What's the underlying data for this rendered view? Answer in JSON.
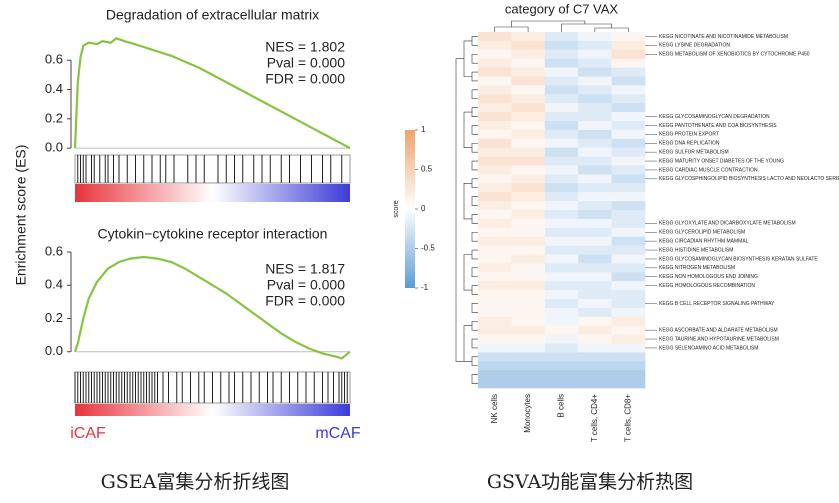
{
  "chart_data": [
    {
      "type": "gsea",
      "title": "Degradation of extracellular matrix",
      "ylabel": "Enrichment score (ES)",
      "annotations": [
        "NES = 1.802",
        "Pval = 0.000",
        "FDR = 0.000"
      ],
      "color": "#86c440",
      "x": [
        0,
        1,
        2,
        3,
        5,
        8,
        10,
        13,
        15,
        18,
        20,
        25,
        30,
        35,
        40,
        45,
        50,
        55,
        60,
        65,
        70,
        75,
        80,
        85,
        90,
        95,
        98,
        100
      ],
      "values": [
        0,
        0.45,
        0.62,
        0.7,
        0.72,
        0.71,
        0.73,
        0.72,
        0.75,
        0.73,
        0.72,
        0.69,
        0.66,
        0.63,
        0.59,
        0.55,
        0.5,
        0.45,
        0.4,
        0.35,
        0.3,
        0.25,
        0.2,
        0.15,
        0.1,
        0.05,
        0.02,
        0
      ],
      "hits": [
        1,
        2,
        3,
        4,
        6,
        7,
        9,
        11,
        12,
        14,
        16,
        19,
        22,
        25,
        28,
        31,
        33,
        36,
        41,
        44,
        47,
        52,
        55,
        58,
        61,
        65,
        68,
        71,
        75,
        78,
        82,
        86,
        90,
        93,
        97
      ],
      "xlim": [
        0,
        100
      ],
      "ylim": [
        -0.04,
        0.82
      ],
      "yticks": [
        {
          "value": 0,
          "label": "0.0"
        },
        0.2,
        0.4,
        0.6
      ]
    },
    {
      "type": "gsea",
      "title": "Cytokin−cytokine receptor interaction",
      "annotations": [
        "NES = 1.817",
        "Pval = 0.000",
        "FDR = 0.000"
      ],
      "color": "#86c440",
      "x": [
        0,
        1,
        3,
        5,
        8,
        12,
        16,
        20,
        25,
        30,
        35,
        40,
        45,
        50,
        55,
        60,
        65,
        70,
        75,
        80,
        85,
        90,
        95,
        97,
        100
      ],
      "values": [
        0,
        0.05,
        0.2,
        0.32,
        0.42,
        0.5,
        0.54,
        0.56,
        0.57,
        0.56,
        0.54,
        0.5,
        0.45,
        0.4,
        0.35,
        0.29,
        0.23,
        0.17,
        0.11,
        0.06,
        0.02,
        -0.01,
        -0.03,
        -0.04,
        0
      ],
      "hits": [
        0,
        1,
        2,
        3,
        4,
        5,
        6,
        7,
        8,
        9,
        10,
        11,
        12,
        13,
        14,
        15,
        16,
        17,
        18,
        19,
        20,
        21,
        22,
        23,
        24,
        25,
        26,
        27,
        28,
        29,
        30,
        32,
        34,
        37,
        39,
        42,
        45,
        47,
        50,
        53,
        56,
        58,
        61,
        64,
        67,
        70,
        72,
        75,
        78,
        81,
        84,
        87,
        90,
        92,
        94,
        96,
        97,
        98,
        99
      ],
      "xlim": [
        0,
        100
      ],
      "ylim": [
        -0.11,
        0.63
      ],
      "yticks": [
        {
          "value": 0,
          "label": "0.0"
        },
        0.2,
        0.4,
        0.6
      ],
      "gradient_labels": [
        "iCAF",
        "mCAF"
      ]
    },
    {
      "type": "heatmap",
      "title": "category of C7 VAX",
      "columns": [
        "NK cells",
        "Monocytes",
        "B cells",
        "T cells, CD4+",
        "T cells, CD8+"
      ],
      "row_labels": [
        "KEGG NICOTINATE AND NICOTINAMIDE METABOLISM",
        "KEGG LYSINE DEGRADATION",
        "KEGG METABOLISM OF XENOBIOTICS BY CYTOCHROME P450",
        null,
        null,
        null,
        null,
        null,
        null,
        "KEGG GLYCOSAMINOGLYCAN DEGRADATION",
        "KEGG PANTOTHENATE AND COA BIOSYNTHESIS",
        "KEGG PROTEIN EXPORT",
        "KEGG DNA REPLICATION",
        "KEGG SULFUR METABOLISM",
        "KEGG MATURITY ONSET DIABETES OF THE YOUNG",
        "KEGG CARDIAC MUSCLE CONTRACTION",
        "KEGG GLYCOSPHINGOLIPID BIOSYNTHESIS LACTO AND NEOLACTO SERIES",
        null,
        null,
        null,
        null,
        "KEGG GLYOXYLATE AND DICARBOXYLATE METABOLISM",
        "KEGG GLYCEROLIPID METABOLISM",
        "KEGG CIRCADIAN RHYTHM MAMMAL",
        "KEGG HISTIDINE METABOLISM",
        "KEGG GLYCOSAMINOGLYCAN BIOSYNTHESIS KERATAN SULFATE",
        "KEGG NITROGEN METABOLISM",
        "KEGG NON HOMOLOGOUS END JOINING",
        "KEGG HOMOLOGOUS RECOMBINATION",
        null,
        "KEGG B CELL RECEPTOR SIGNALING PATHWAY",
        null,
        null,
        "KEGG ASCORBATE AND ALDARATE METABOLISM",
        "KEGG TAURINE AND HYPOTAURINE METABOLISM",
        "KEGG SELENOAMINO ACID METABOLISM",
        null,
        null,
        null,
        null
      ],
      "values": [
        [
          0.3,
          0.2,
          -0.2,
          -0.1,
          0.1
        ],
        [
          0.2,
          0.3,
          -0.3,
          -0.2,
          0.2
        ],
        [
          0.1,
          0.2,
          -0.2,
          -0.1,
          0.3
        ],
        [
          0.2,
          0.1,
          -0.3,
          -0.2,
          0.1
        ],
        [
          0.3,
          0.2,
          -0.1,
          -0.3,
          -0.2
        ],
        [
          0.1,
          0.3,
          -0.2,
          -0.1,
          -0.3
        ],
        [
          0.2,
          0.1,
          -0.3,
          -0.2,
          -0.1
        ],
        [
          0.3,
          0.2,
          -0.2,
          -0.3,
          -0.2
        ],
        [
          0.2,
          0.3,
          -0.1,
          -0.2,
          -0.3
        ],
        [
          0.3,
          0.2,
          -0.2,
          -0.2,
          -0.1
        ],
        [
          0.2,
          0.1,
          -0.3,
          -0.1,
          -0.2
        ],
        [
          0.1,
          0.2,
          -0.2,
          -0.3,
          -0.1
        ],
        [
          0.3,
          0.1,
          -0.1,
          -0.2,
          -0.3
        ],
        [
          0.2,
          0.2,
          -0.3,
          -0.1,
          -0.2
        ],
        [
          0.3,
          0.3,
          -0.2,
          -0.2,
          -0.1
        ],
        [
          0.2,
          0.1,
          -0.1,
          -0.3,
          -0.2
        ],
        [
          0.1,
          0.2,
          -0.2,
          -0.1,
          -0.3
        ],
        [
          0.2,
          0.3,
          -0.3,
          -0.2,
          -0.2
        ],
        [
          0.3,
          0.2,
          -0.2,
          -0.1,
          -0.1
        ],
        [
          0.2,
          0.1,
          -0.1,
          -0.2,
          -0.3
        ],
        [
          0.1,
          0.2,
          -0.2,
          -0.3,
          -0.2
        ],
        [
          0.2,
          0.1,
          -0.1,
          -0.1,
          -0.2
        ],
        [
          0.1,
          0.1,
          -0.2,
          -0.2,
          -0.1
        ],
        [
          0.2,
          0.2,
          -0.1,
          -0.1,
          -0.3
        ],
        [
          0.1,
          0.1,
          -0.2,
          -0.2,
          -0.2
        ],
        [
          0.1,
          0.2,
          -0.1,
          -0.3,
          -0.1
        ],
        [
          0.2,
          0.1,
          -0.2,
          -0.2,
          -0.2
        ],
        [
          0.1,
          0.1,
          -0.1,
          -0.1,
          -0.3
        ],
        [
          0.2,
          0.2,
          -0.2,
          -0.2,
          -0.1
        ],
        [
          0.1,
          0.1,
          -0.1,
          -0.2,
          -0.2
        ],
        [
          0.1,
          0.1,
          -0.2,
          -0.1,
          -0.2
        ],
        [
          0.1,
          0.1,
          -0.1,
          -0.2,
          -0.1
        ],
        [
          0.2,
          0.1,
          -0.1,
          0.1,
          0.2
        ],
        [
          0.2,
          0.2,
          0.1,
          0.2,
          0.1
        ],
        [
          0.1,
          0.1,
          -0.1,
          0.1,
          0.2
        ],
        [
          -0.1,
          -0.1,
          -0.2,
          -0.1,
          -0.1
        ],
        [
          -0.3,
          -0.3,
          -0.3,
          -0.3,
          -0.3
        ],
        [
          -0.4,
          -0.4,
          -0.4,
          -0.4,
          -0.4
        ],
        [
          -0.5,
          -0.5,
          -0.5,
          -0.5,
          -0.5
        ],
        [
          -0.5,
          -0.5,
          -0.5,
          -0.5,
          -0.5
        ]
      ],
      "colorscale": [
        "#5b9bd5",
        "#ffffff",
        "#eda36b"
      ],
      "clim": [
        -1,
        1
      ],
      "colorbar_ticks": [
        -1,
        -0.5,
        0,
        0.5,
        1
      ],
      "colorbar_label": "score"
    }
  ],
  "captions": [
    "GSEA富集分析折线图",
    "GSVA功能富集分析热图"
  ]
}
